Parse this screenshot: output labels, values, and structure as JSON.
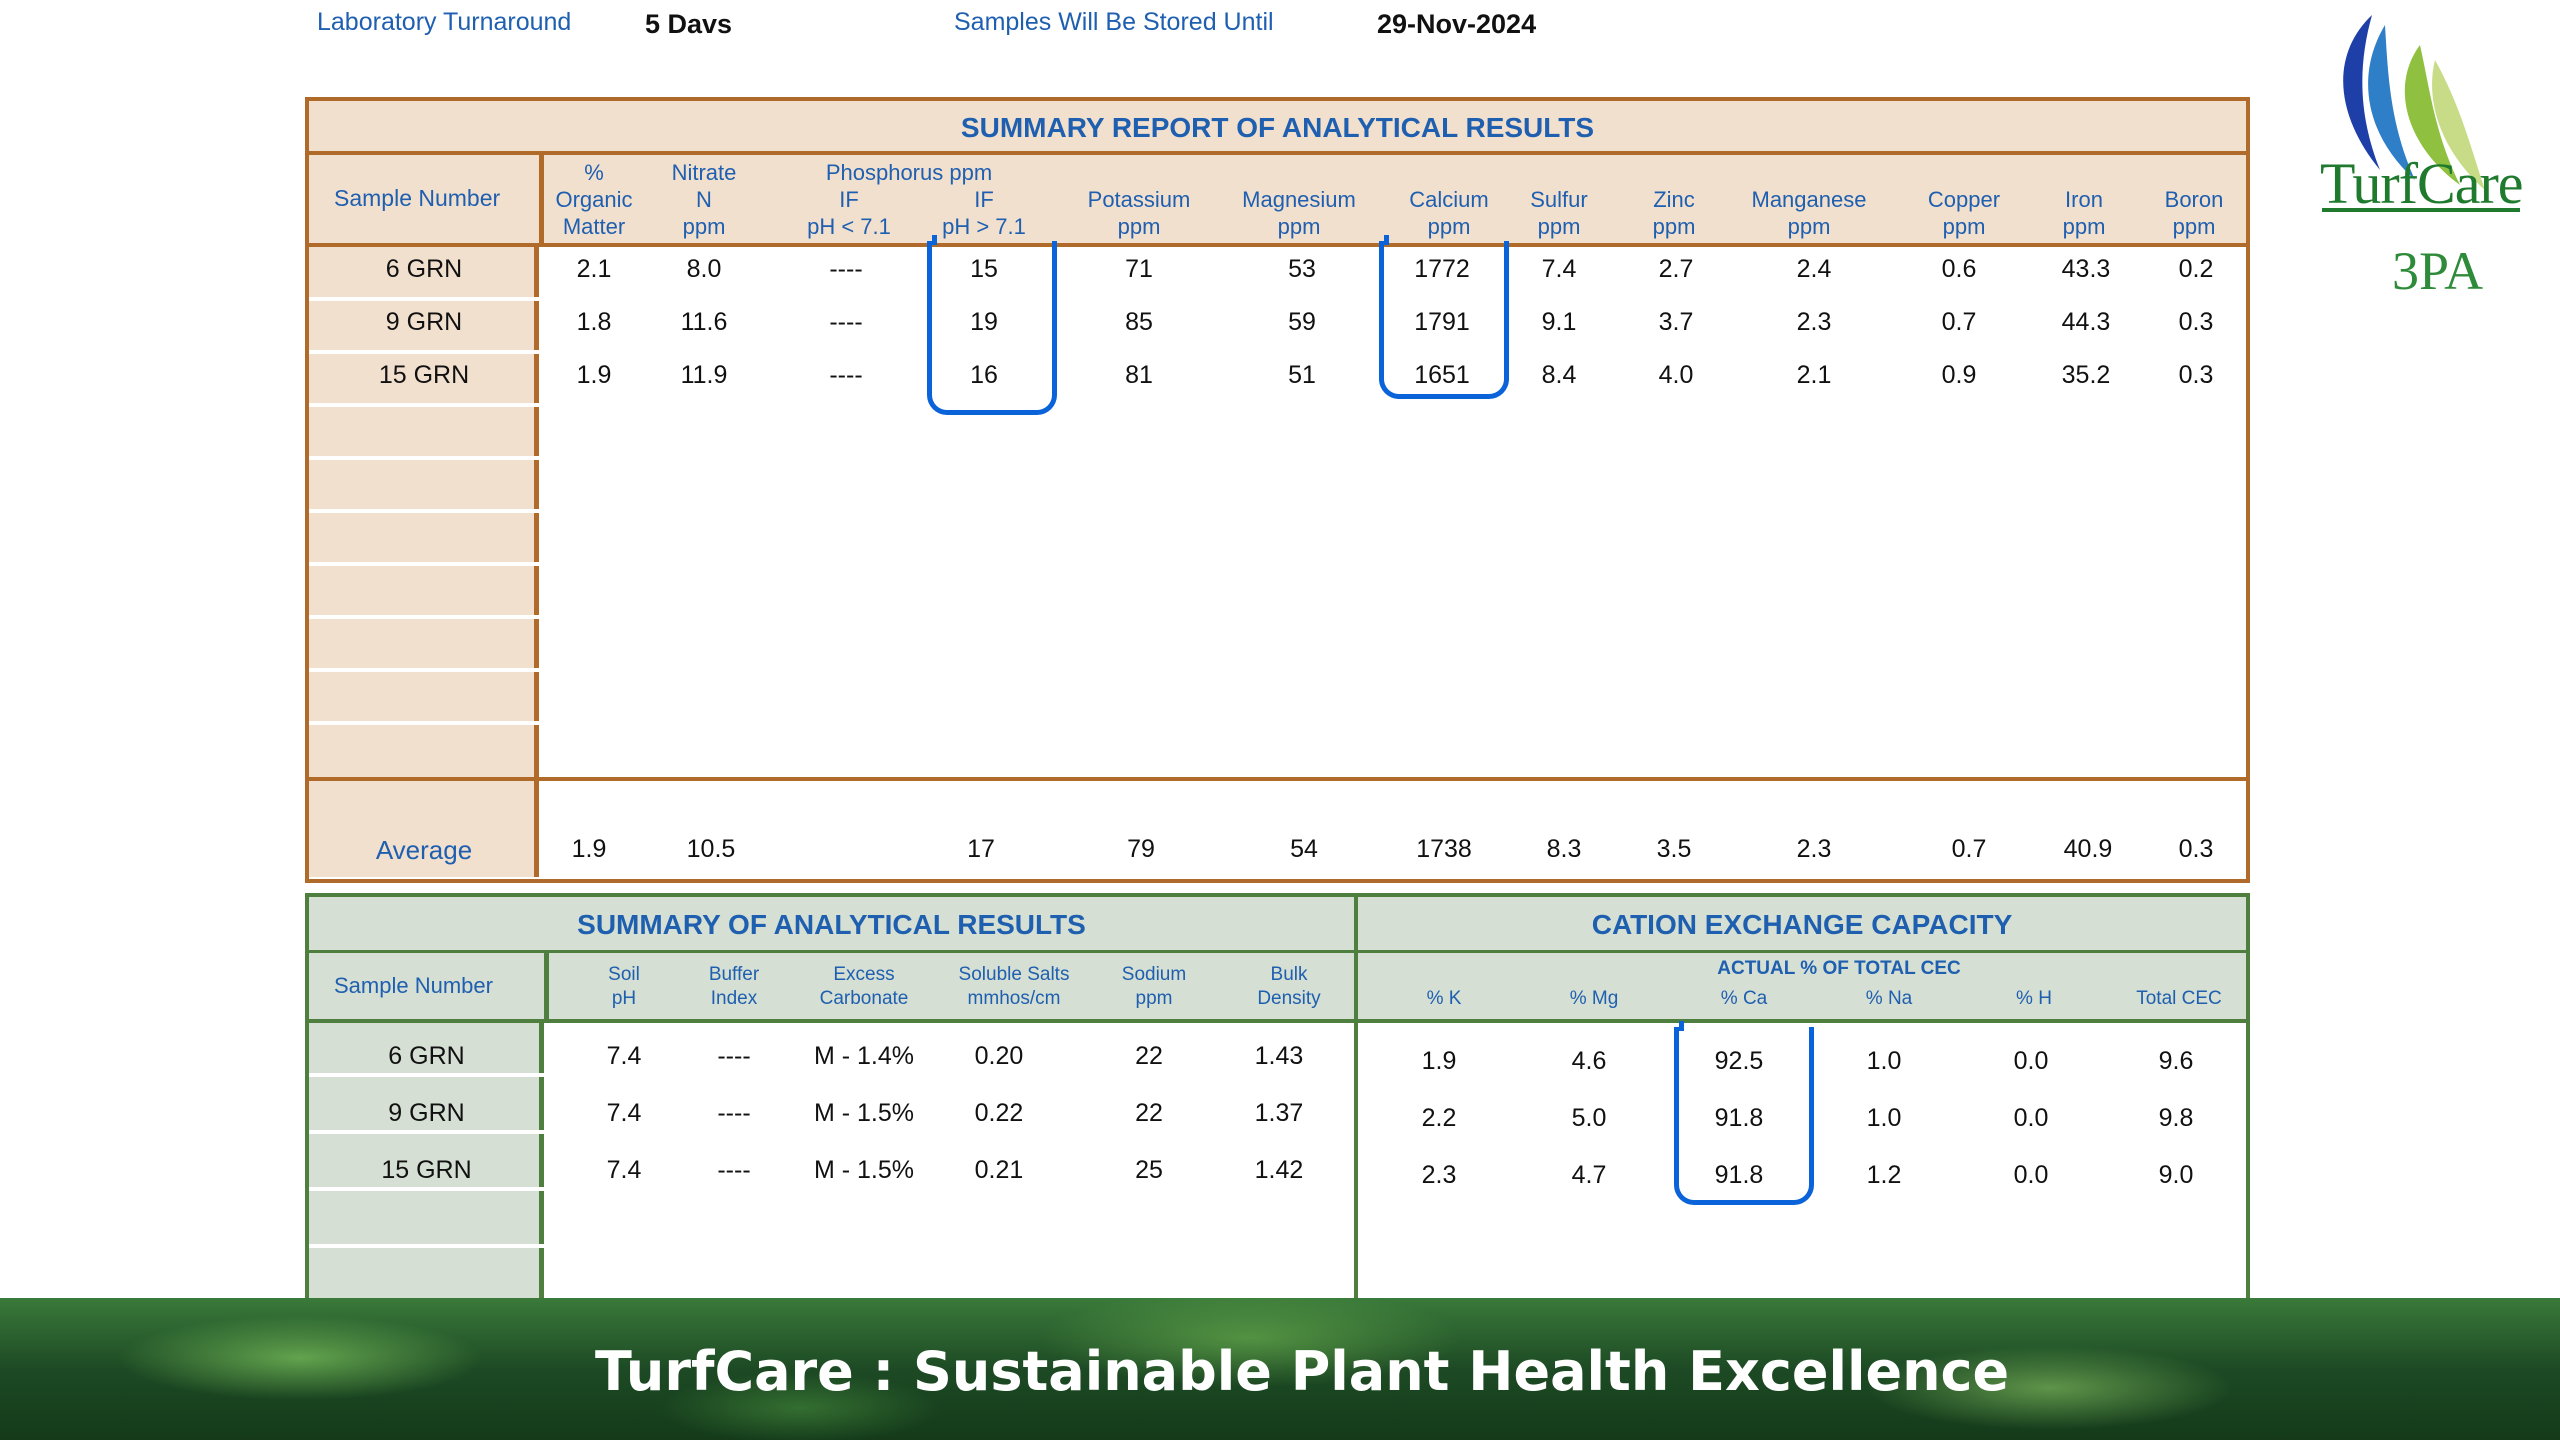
{
  "header": {
    "turnaround_label": "Laboratory Turnaround",
    "turnaround_value": "5 Davs",
    "storage_label": "Samples Will Be Stored Until",
    "storage_value": "29-Nov-2024"
  },
  "logo": {
    "name": "TurfCare",
    "sub": "3PA"
  },
  "table1": {
    "title": "SUMMARY REPORT OF ANALYTICAL RESULTS",
    "sample_header": "Sample Number",
    "headers": [
      [
        "%",
        "Organic",
        "Matter"
      ],
      [
        "Nitrate",
        "N",
        "ppm"
      ],
      [
        "Phosphorus ppm"
      ],
      [
        "IF",
        "pH < 7.1"
      ],
      [
        "IF",
        "pH > 7.1"
      ],
      [
        "Potassium",
        "ppm"
      ],
      [
        "Magnesium",
        "ppm"
      ],
      [
        "Calcium",
        "ppm"
      ],
      [
        "Sulfur",
        "ppm"
      ],
      [
        "Zinc",
        "ppm"
      ],
      [
        "Manganese",
        "ppm"
      ],
      [
        "Copper",
        "ppm"
      ],
      [
        "Iron",
        "ppm"
      ],
      [
        "Boron",
        "ppm"
      ]
    ],
    "rows": [
      {
        "sample": "6 GRN",
        "values": [
          "2.1",
          "8.0",
          "----",
          "15",
          "71",
          "53",
          "1772",
          "7.4",
          "2.7",
          "2.4",
          "0.6",
          "43.3",
          "0.2"
        ]
      },
      {
        "sample": "9 GRN",
        "values": [
          "1.8",
          "11.6",
          "----",
          "19",
          "85",
          "59",
          "1791",
          "9.1",
          "3.7",
          "2.3",
          "0.7",
          "44.3",
          "0.3"
        ]
      },
      {
        "sample": "15 GRN",
        "values": [
          "1.9",
          "11.9",
          "----",
          "16",
          "81",
          "51",
          "1651",
          "8.4",
          "4.0",
          "2.1",
          "0.9",
          "35.2",
          "0.3"
        ]
      }
    ],
    "average_label": "Average",
    "average": [
      "1.9",
      "10.5",
      "",
      "17",
      "79",
      "54",
      "1738",
      "8.3",
      "3.5",
      "2.3",
      "0.7",
      "40.9",
      "0.3"
    ]
  },
  "table2": {
    "title_left": "SUMMARY OF ANALYTICAL RESULTS",
    "title_right": "CATION EXCHANGE CAPACITY",
    "sample_header": "Sample Number",
    "left_headers": [
      [
        "Soil",
        "pH"
      ],
      [
        "Buffer",
        "Index"
      ],
      [
        "Excess",
        "Carbonate"
      ],
      [
        "Soluble Salts",
        "mmhos/cm"
      ],
      [
        "Sodium",
        "ppm"
      ],
      [
        "Bulk",
        "Density"
      ]
    ],
    "cec_group_label": "ACTUAL % OF TOTAL CEC",
    "right_headers": [
      "% K",
      "% Mg",
      "% Ca",
      "% Na",
      "% H",
      "Total CEC"
    ],
    "rows": [
      {
        "sample": "6 GRN",
        "left": [
          "7.4",
          "----",
          "M - 1.4%",
          "0.20",
          "22",
          "1.43"
        ],
        "right": [
          "1.9",
          "4.6",
          "92.5",
          "1.0",
          "0.0",
          "9.6"
        ]
      },
      {
        "sample": "9 GRN",
        "left": [
          "7.4",
          "----",
          "M - 1.5%",
          "0.22",
          "22",
          "1.37"
        ],
        "right": [
          "2.2",
          "5.0",
          "91.8",
          "1.0",
          "0.0",
          "9.8"
        ]
      },
      {
        "sample": "15 GRN",
        "left": [
          "7.4",
          "----",
          "M - 1.5%",
          "0.21",
          "25",
          "1.42"
        ],
        "right": [
          "2.3",
          "4.7",
          "91.8",
          "1.2",
          "0.0",
          "9.0"
        ]
      }
    ]
  },
  "footer": {
    "tagline": "TurfCare : Sustainable Plant Health Excellence"
  },
  "colors": {
    "blue_text": "#1f5fb0",
    "brown_border": "#b06a2a",
    "green_border": "#4f7f3f",
    "highlight": "#0a63d8"
  }
}
